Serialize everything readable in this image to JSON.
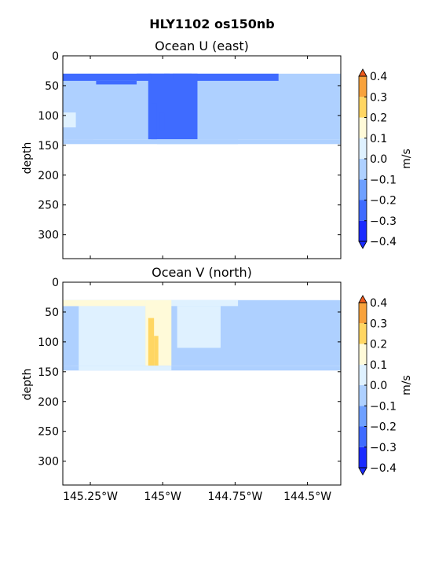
{
  "figure_title": "HLY1102 os150nb",
  "colors": {
    "-0.4": "#1a2bff",
    "-0.3": "#3f6bff",
    "-0.2": "#6ea0ff",
    "-0.1": "#aed0ff",
    "0.0": "#dff1ff",
    "0.1": "#fffad9",
    "0.2": "#ffd663",
    "0.3": "#f8a23c",
    "0.4": "#ee5a1c"
  },
  "chart_data": [
    {
      "type": "heatmap",
      "title": "Ocean U (east)",
      "ylabel": "depth",
      "xlabel": "",
      "ylim": [
        340,
        0
      ],
      "xlim": [
        -145.345,
        -144.385
      ],
      "x_ticks": [
        -145.25,
        -145.0,
        -144.75,
        -144.5
      ],
      "x_tick_labels": [
        "145.25°W",
        "145°W",
        "144.75°W",
        "144.5°W"
      ],
      "y_ticks": [
        0,
        50,
        100,
        150,
        200,
        250,
        300
      ],
      "y_tick_labels": [
        "0",
        "50",
        "100",
        "150",
        "200",
        "250",
        "300"
      ],
      "colorbar": {
        "label": "m/s",
        "levels": [
          -0.4,
          -0.3,
          -0.2,
          -0.1,
          0.0,
          0.1,
          0.2,
          0.3,
          0.4
        ],
        "tick_labels": [
          "−0.4",
          "−0.3",
          "−0.2",
          "−0.1",
          "0.0",
          "0.1",
          "0.2",
          "0.3",
          "0.4"
        ]
      },
      "cells": [
        {
          "x0": -145.345,
          "x1": -144.385,
          "d0": 30,
          "d1": 140,
          "v": -0.15
        },
        {
          "x0": -145.345,
          "x1": -145.24,
          "d0": 55,
          "d1": 140,
          "v": -0.05
        },
        {
          "x0": -145.345,
          "x1": -145.3,
          "d0": 95,
          "d1": 120,
          "v": 0.05
        },
        {
          "x0": -144.51,
          "x1": -144.385,
          "d0": 50,
          "d1": 120,
          "v": -0.05
        },
        {
          "x0": -144.385,
          "x1": -144.39,
          "d0": 120,
          "d1": 140,
          "v": -0.15
        },
        {
          "x0": -145.345,
          "x1": -144.6,
          "d0": 30,
          "d1": 42,
          "v": -0.25
        },
        {
          "x0": -145.23,
          "x1": -145.09,
          "d0": 42,
          "d1": 48,
          "v": -0.25
        },
        {
          "x0": -145.05,
          "x1": -144.88,
          "d0": 30,
          "d1": 140,
          "v": -0.25
        },
        {
          "x0": -145.04,
          "x1": -145.02,
          "d0": 80,
          "d1": 140,
          "v": -0.35
        },
        {
          "x0": -145.01,
          "x1": -144.995,
          "d0": 95,
          "d1": 125,
          "v": -0.35
        },
        {
          "x0": -144.995,
          "x1": -144.975,
          "d0": 30,
          "d1": 40,
          "v": -0.35
        },
        {
          "x0": -144.965,
          "x1": -144.9,
          "d0": 30,
          "d1": 40,
          "v": -0.35
        },
        {
          "x0": -145.09,
          "x1": -145.04,
          "d0": 30,
          "d1": 40,
          "v": -0.35
        },
        {
          "x0": -145.345,
          "x1": -144.385,
          "d0": 140,
          "d1": 148,
          "v": -0.15
        },
        {
          "x0": -145.02,
          "x1": -144.74,
          "d0": 140,
          "d1": 148,
          "v": -0.15
        }
      ]
    },
    {
      "type": "heatmap",
      "title": "Ocean V (north)",
      "ylabel": "depth",
      "xlabel": "",
      "ylim": [
        340,
        0
      ],
      "xlim": [
        -145.345,
        -144.385
      ],
      "x_ticks": [
        -145.25,
        -145.0,
        -144.75,
        -144.5
      ],
      "x_tick_labels": [
        "145.25°W",
        "145°W",
        "144.75°W",
        "144.5°W"
      ],
      "y_ticks": [
        0,
        50,
        100,
        150,
        200,
        250,
        300
      ],
      "y_tick_labels": [
        "0",
        "50",
        "100",
        "150",
        "200",
        "250",
        "300"
      ],
      "colorbar": {
        "label": "m/s",
        "levels": [
          -0.4,
          -0.3,
          -0.2,
          -0.1,
          0.0,
          0.1,
          0.2,
          0.3,
          0.4
        ],
        "tick_labels": [
          "−0.4",
          "−0.3",
          "−0.2",
          "−0.1",
          "0.0",
          "0.1",
          "0.2",
          "0.3",
          "0.4"
        ]
      },
      "cells": [
        {
          "x0": -145.345,
          "x1": -144.385,
          "d0": 30,
          "d1": 140,
          "v": -0.05
        },
        {
          "x0": -145.345,
          "x1": -145.32,
          "d0": 60,
          "d1": 140,
          "v": -0.05
        },
        {
          "x0": -145.29,
          "x1": -145.06,
          "d0": 40,
          "d1": 140,
          "v": 0.05
        },
        {
          "x0": -145.345,
          "x1": -144.74,
          "d0": 30,
          "d1": 40,
          "v": 0.05
        },
        {
          "x0": -145.345,
          "x1": -145.06,
          "d0": 30,
          "d1": 40,
          "v": 0.15
        },
        {
          "x0": -145.06,
          "x1": -144.97,
          "d0": 30,
          "d1": 140,
          "v": 0.15
        },
        {
          "x0": -145.05,
          "x1": -145.03,
          "d0": 60,
          "d1": 140,
          "v": 0.25
        },
        {
          "x0": -145.03,
          "x1": -145.015,
          "d0": 90,
          "d1": 140,
          "v": 0.25
        },
        {
          "x0": -144.95,
          "x1": -144.8,
          "d0": 40,
          "d1": 110,
          "v": 0.05
        },
        {
          "x0": -144.7,
          "x1": -144.55,
          "d0": 50,
          "d1": 90,
          "v": -0.15
        },
        {
          "x0": -144.45,
          "x1": -144.385,
          "d0": 38,
          "d1": 60,
          "v": -0.15
        },
        {
          "x0": -145.345,
          "x1": -145.32,
          "d0": 85,
          "d1": 110,
          "v": -0.15
        },
        {
          "x0": -145.345,
          "x1": -144.385,
          "d0": 140,
          "d1": 148,
          "v": -0.05
        },
        {
          "x0": -145.29,
          "x1": -144.97,
          "d0": 140,
          "d1": 148,
          "v": 0.05
        }
      ]
    }
  ]
}
